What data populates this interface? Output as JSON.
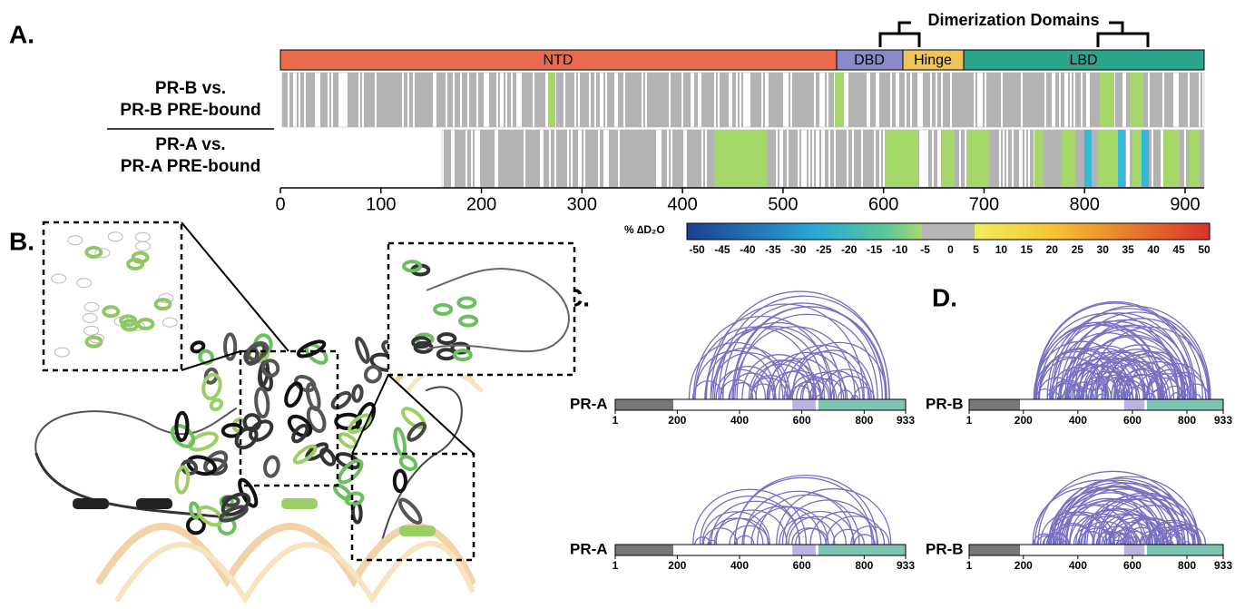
{
  "panel_a": {
    "label": "A.",
    "header": "Dimerization Domains",
    "domains": [
      "NTD",
      "DBD",
      "Hinge",
      "LBD"
    ],
    "rows": [
      [
        "PR-B vs.",
        "PR-B PRE-bound"
      ],
      [
        "PR-A vs.",
        "PR-A PRE-bound"
      ]
    ],
    "axis_ticks": [
      0,
      100,
      200,
      300,
      400,
      500,
      600,
      700,
      800,
      900
    ]
  },
  "colorbar": {
    "label": "% ∆D₂O",
    "ticks": [
      -50,
      -45,
      -40,
      -35,
      -30,
      -25,
      -20,
      -15,
      -10,
      -5,
      0,
      5,
      10,
      15,
      20,
      25,
      30,
      35,
      40,
      45,
      50
    ]
  },
  "panel_b": {
    "label": "B."
  },
  "panel_c": {
    "label": "C.",
    "plots": [
      {
        "name": "PR-A",
        "ticks": [
          1,
          200,
          400,
          600,
          800,
          933
        ]
      },
      {
        "name": "PR-A",
        "ticks": [
          1,
          200,
          400,
          600,
          800,
          933
        ]
      }
    ]
  },
  "panel_d": {
    "label": "D.",
    "plots": [
      {
        "name": "PR-B",
        "ticks": [
          1,
          200,
          400,
          600,
          800,
          933
        ]
      },
      {
        "name": "PR-B",
        "ticks": [
          1,
          200,
          400,
          600,
          800,
          933
        ]
      }
    ]
  }
}
